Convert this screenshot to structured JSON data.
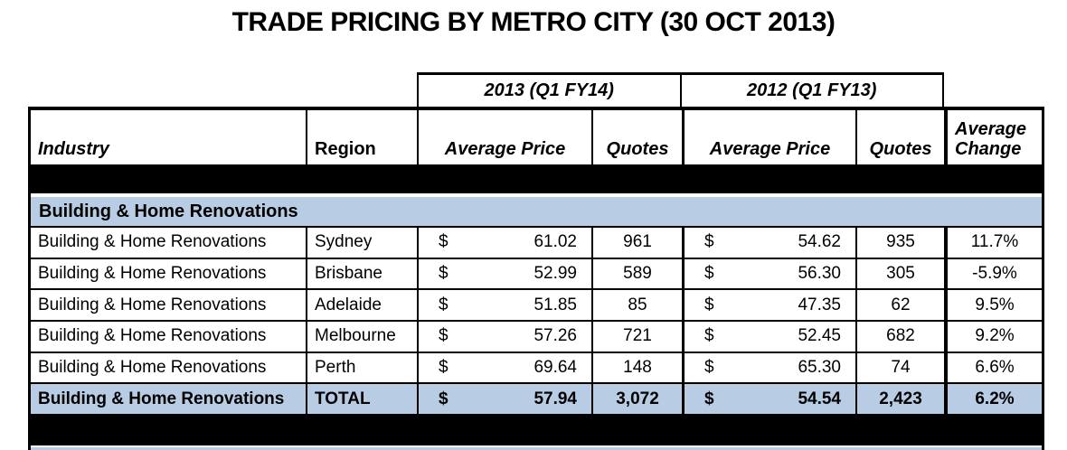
{
  "title": "TRADE PRICING BY METRO CITY (30 OCT 2013)",
  "currency_symbol": "$",
  "colors": {
    "section_header_bg": "#b8cce4",
    "total_row_bg": "#b8cce4",
    "band_bg": "#000000",
    "border": "#000000",
    "text": "#000000",
    "background": "#ffffff"
  },
  "table": {
    "group_headers": [
      "2013 (Q1 FY14)",
      "2012 (Q1 FY13)"
    ],
    "columns": [
      "Industry",
      "Region",
      "Average Price",
      "Quotes",
      "Average Price",
      "Quotes",
      "Average Change"
    ],
    "section_header": "Building & Home Renovations",
    "rows": [
      {
        "industry": "Building & Home Renovations",
        "region": "Sydney",
        "avg_price_2013": "61.02",
        "quotes_2013": "961",
        "avg_price_2012": "54.62",
        "quotes_2012": "935",
        "avg_change": "11.7%"
      },
      {
        "industry": "Building & Home Renovations",
        "region": "Brisbane",
        "avg_price_2013": "52.99",
        "quotes_2013": "589",
        "avg_price_2012": "56.30",
        "quotes_2012": "305",
        "avg_change": "-5.9%"
      },
      {
        "industry": "Building & Home Renovations",
        "region": "Adelaide",
        "avg_price_2013": "51.85",
        "quotes_2013": "85",
        "avg_price_2012": "47.35",
        "quotes_2012": "62",
        "avg_change": "9.5%"
      },
      {
        "industry": "Building & Home Renovations",
        "region": "Melbourne",
        "avg_price_2013": "57.26",
        "quotes_2013": "721",
        "avg_price_2012": "52.45",
        "quotes_2012": "682",
        "avg_change": "9.2%"
      },
      {
        "industry": "Building & Home Renovations",
        "region": "Perth",
        "avg_price_2013": "69.64",
        "quotes_2013": "148",
        "avg_price_2012": "65.30",
        "quotes_2012": "74",
        "avg_change": "6.6%"
      },
      {
        "industry": "Building & Home Renovations",
        "region": "TOTAL",
        "avg_price_2013": "57.94",
        "quotes_2013": "3,072",
        "avg_price_2012": "54.54",
        "quotes_2012": "2,423",
        "avg_change": "6.2%"
      }
    ]
  }
}
